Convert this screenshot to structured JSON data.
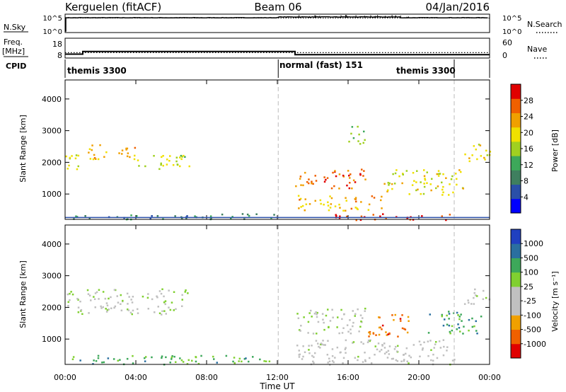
{
  "header": {
    "station": "Kerguelen (fitACF)",
    "beam": "Beam 06",
    "date": "04/Jan/2016"
  },
  "control_panel": {
    "nsky_label": "N.Sky",
    "nsky_ticks": [
      "10^5",
      "10^0"
    ],
    "nsky_right_ticks": [
      "10^5",
      "10^0"
    ],
    "nsearch_label": "N.Search",
    "freq_label": "Freq.",
    "freq_unit": "[MHz]",
    "freq_ticks": [
      "18",
      "8"
    ],
    "nave_ticks": [
      "60",
      "0"
    ],
    "nave_label": "Nave",
    "cpid_label": "CPID",
    "cpid_entries": [
      {
        "label": "themis 3300",
        "start_hr": 0
      },
      {
        "label": "normal (fast) 151",
        "start_hr": 12.05
      },
      {
        "label": "themis 3300",
        "start_hr": 22
      }
    ],
    "cpid_boundaries_hr": [
      12.05,
      22
    ],
    "nsky_series": {
      "baseline": 4.3,
      "start_low_until_hr": 0.05
    },
    "nsearch_series": {
      "value_log": 4.2
    },
    "freq_series": [
      [
        0,
        10.5
      ],
      [
        1.0,
        10.5
      ],
      [
        1.0,
        13.2
      ],
      [
        13.0,
        13.2
      ],
      [
        13.0,
        10.0
      ],
      [
        24,
        10.0
      ]
    ],
    "nave_level": 14
  },
  "chart_data": [
    {
      "type": "heatmap",
      "name": "power",
      "ylabel": "Slant Range [km]",
      "y_ticks": [
        "4000",
        "3000",
        "2000",
        "1000"
      ],
      "x_ticks": [
        "00:00",
        "04:00",
        "08:00",
        "12:00",
        "16:00",
        "20:00",
        "00:00"
      ],
      "x_hours": [
        0,
        4,
        8,
        12,
        16,
        20,
        24
      ],
      "ylim": [
        200,
        4600
      ],
      "xlim": [
        0,
        24
      ],
      "colorbar_label": "Power [dB]",
      "colorbar_ticks": [
        "28",
        "24",
        "20",
        "16",
        "12",
        "8",
        "4"
      ],
      "colorbar_colors": [
        "#0000ff",
        "#2a4fa8",
        "#3f7f5f",
        "#3da85a",
        "#a0d020",
        "#f0e000",
        "#f0a000",
        "#f06000",
        "#e00000"
      ],
      "regions": [
        {
          "t": [
            0.0,
            1.0
          ],
          "r": [
            1800,
            2400
          ],
          "level": 0.55
        },
        {
          "t": [
            1.2,
            4.0
          ],
          "r": [
            2100,
            2600
          ],
          "level": 0.7
        },
        {
          "t": [
            4.0,
            7.0
          ],
          "r": [
            1800,
            2300
          ],
          "level": 0.55
        },
        {
          "t": [
            0.0,
            12.0
          ],
          "r": [
            220,
            400
          ],
          "level": 0.25
        },
        {
          "t": [
            13.0,
            17.0
          ],
          "r": [
            1200,
            1800
          ],
          "level": 0.85
        },
        {
          "t": [
            13.0,
            18.0
          ],
          "r": [
            500,
            1000
          ],
          "level": 0.7
        },
        {
          "t": [
            15.0,
            22.0
          ],
          "r": [
            200,
            400
          ],
          "level": 0.95
        },
        {
          "t": [
            18.0,
            22.5
          ],
          "r": [
            1000,
            1800
          ],
          "level": 0.6
        },
        {
          "t": [
            22.5,
            24.0
          ],
          "r": [
            2000,
            2600
          ],
          "level": 0.6
        },
        {
          "t": [
            16.0,
            17.0
          ],
          "r": [
            2600,
            3200
          ],
          "level": 0.45
        }
      ]
    },
    {
      "type": "heatmap",
      "name": "velocity",
      "ylabel": "Slant Range [km]",
      "y_ticks": [
        "4000",
        "3000",
        "2000",
        "1000"
      ],
      "x_ticks": [
        "00:00",
        "04:00",
        "08:00",
        "12:00",
        "16:00",
        "20:00",
        "00:00"
      ],
      "x_hours": [
        0,
        4,
        8,
        12,
        16,
        20,
        24
      ],
      "ylim": [
        200,
        4600
      ],
      "xlim": [
        0,
        24
      ],
      "colorbar_label": "Velocity [m s⁻¹]",
      "colorbar_ticks": [
        "1000",
        "500",
        "100",
        "25",
        "-25",
        "-100",
        "-500",
        "-1000"
      ],
      "colorbar_colors": [
        "#e00000",
        "#f06000",
        "#f0a000",
        "#c0c0c0",
        "#c0c0c0",
        "#80d030",
        "#3da85a",
        "#2a6fa0",
        "#2040c0"
      ],
      "regions": [
        {
          "t": [
            0.0,
            1.0
          ],
          "r": [
            1800,
            2600
          ],
          "level": 0.5
        },
        {
          "t": [
            1.2,
            7.0
          ],
          "r": [
            1800,
            2600
          ],
          "level": 0.5
        },
        {
          "t": [
            0.0,
            12.0
          ],
          "r": [
            220,
            500
          ],
          "level": 0.7
        },
        {
          "t": [
            13.0,
            17.0
          ],
          "r": [
            1200,
            2000
          ],
          "level": 0.5
        },
        {
          "t": [
            17.0,
            19.5
          ],
          "r": [
            1100,
            1800
          ],
          "level": 0.15
        },
        {
          "t": [
            13.0,
            22.0
          ],
          "r": [
            200,
            1000
          ],
          "level": 0.45
        },
        {
          "t": [
            20.5,
            23.5
          ],
          "r": [
            1200,
            1900
          ],
          "level": 0.75
        },
        {
          "t": [
            22.5,
            24.0
          ],
          "r": [
            2100,
            2600
          ],
          "level": 0.5
        }
      ]
    }
  ],
  "x_axis_label": "Time UT"
}
